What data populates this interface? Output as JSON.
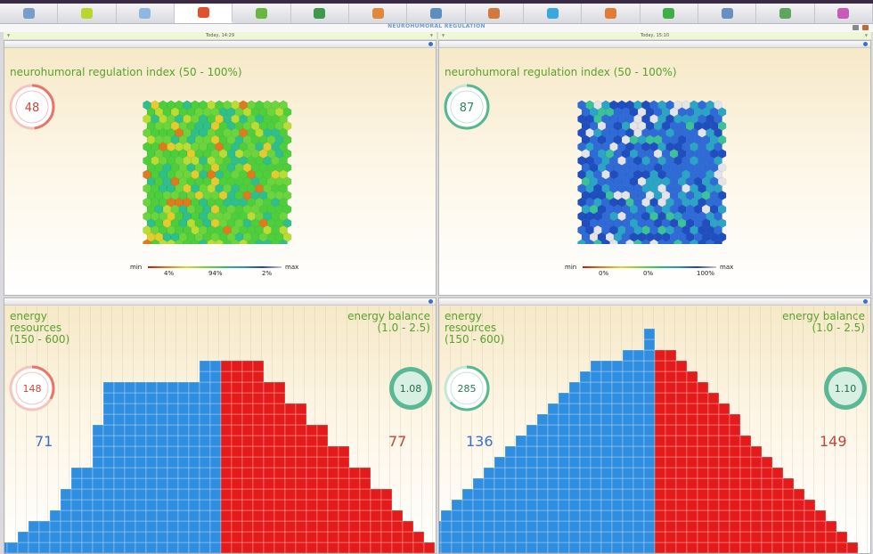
{
  "toolbar": {
    "icons": [
      {
        "name": "monitor-icon",
        "color": "#7a9cc8"
      },
      {
        "name": "green-orb-icon",
        "color": "#b7d62e"
      },
      {
        "name": "chart-grid-icon",
        "color": "#8fb7e0"
      },
      {
        "name": "hexagon-cluster-icon",
        "color": "#e0522e"
      },
      {
        "name": "organ-icon",
        "color": "#6bb543"
      },
      {
        "name": "square-badge-icon",
        "color": "#3d9a4d"
      },
      {
        "name": "orange-orb-icon",
        "color": "#e0883c"
      },
      {
        "name": "blue-grid-icon",
        "color": "#5a8fc0"
      },
      {
        "name": "spine-icon",
        "color": "#d07a40"
      },
      {
        "name": "head-profile-icon",
        "color": "#3aa8d8"
      },
      {
        "name": "om-symbol-icon",
        "color": "#e07c3a"
      },
      {
        "name": "cycle-arrows-icon",
        "color": "#3fae48"
      },
      {
        "name": "house-icon",
        "color": "#6a8fbf"
      },
      {
        "name": "bar-chart-icon",
        "color": "#5fa55f"
      },
      {
        "name": "brain-icon",
        "color": "#c85ab8"
      }
    ],
    "active_index": 3
  },
  "header": {
    "title": "NEUROHUMORAL REGULATION"
  },
  "dates": {
    "left": "Today, 14:29",
    "right": "Today, 15:10"
  },
  "panels": {
    "nh_left": {
      "title": "neurohumoral regulation index (50 - 100%)",
      "value": "48",
      "value_fraction": 0.48,
      "ring_color": "#e8756a",
      "value_color": "#c8463a",
      "legend": {
        "min": "min",
        "max": "max",
        "p1": "4%",
        "p2": "94%",
        "p3": "2%"
      }
    },
    "nh_right": {
      "title": "neurohumoral regulation index (50 - 100%)",
      "value": "87",
      "value_fraction": 0.87,
      "ring_color": "#56b890",
      "value_color": "#2a8a5c",
      "legend": {
        "min": "min",
        "max": "max",
        "p1": "0%",
        "p2": "0%",
        "p3": "100%"
      }
    },
    "en_left": {
      "resources_label_1": "energy",
      "resources_label_2": "resources",
      "resources_label_3": "(150 - 600)",
      "balance_label_1": "energy balance",
      "balance_label_2": "(1.0 - 2.5)",
      "resources_value": "148",
      "balance_value": "1.08",
      "left_count": "71",
      "right_count": "77",
      "left_hist": [
        1,
        1,
        1,
        1,
        1,
        2,
        3,
        3,
        4,
        6,
        8,
        8,
        12,
        16,
        16,
        16,
        16,
        16,
        16,
        16,
        16,
        16,
        18,
        18
      ],
      "right_hist": [
        18,
        18,
        18,
        18,
        16,
        16,
        14,
        14,
        12,
        12,
        10,
        10,
        8,
        8,
        6,
        6,
        4,
        3,
        2,
        1,
        1,
        1,
        1,
        1,
        1,
        1,
        1,
        1,
        1,
        1,
        1,
        1
      ]
    },
    "en_right": {
      "resources_label_1": "energy",
      "resources_label_2": "resources",
      "resources_label_3": "(150 - 600)",
      "balance_label_1": "energy balance",
      "balance_label_2": "(1.0 - 2.5)",
      "resources_value": "285",
      "balance_value": "1.10",
      "left_count": "136",
      "right_count": "149",
      "left_hist": [
        1,
        2,
        3,
        4,
        5,
        6,
        7,
        8,
        9,
        10,
        11,
        12,
        13,
        14,
        15,
        16,
        17,
        18,
        18,
        18,
        19,
        19,
        21
      ],
      "right_hist": [
        19,
        19,
        18,
        17,
        16,
        15,
        14,
        13,
        11,
        10,
        9,
        8,
        7,
        6,
        5,
        4,
        3,
        2,
        1
      ]
    }
  },
  "colors": {
    "blue": "#2f8ee0",
    "red": "#e41b1b",
    "green_text": "#5aa02c",
    "count_blue": "#3b6fd4",
    "count_red": "#c0463a"
  }
}
